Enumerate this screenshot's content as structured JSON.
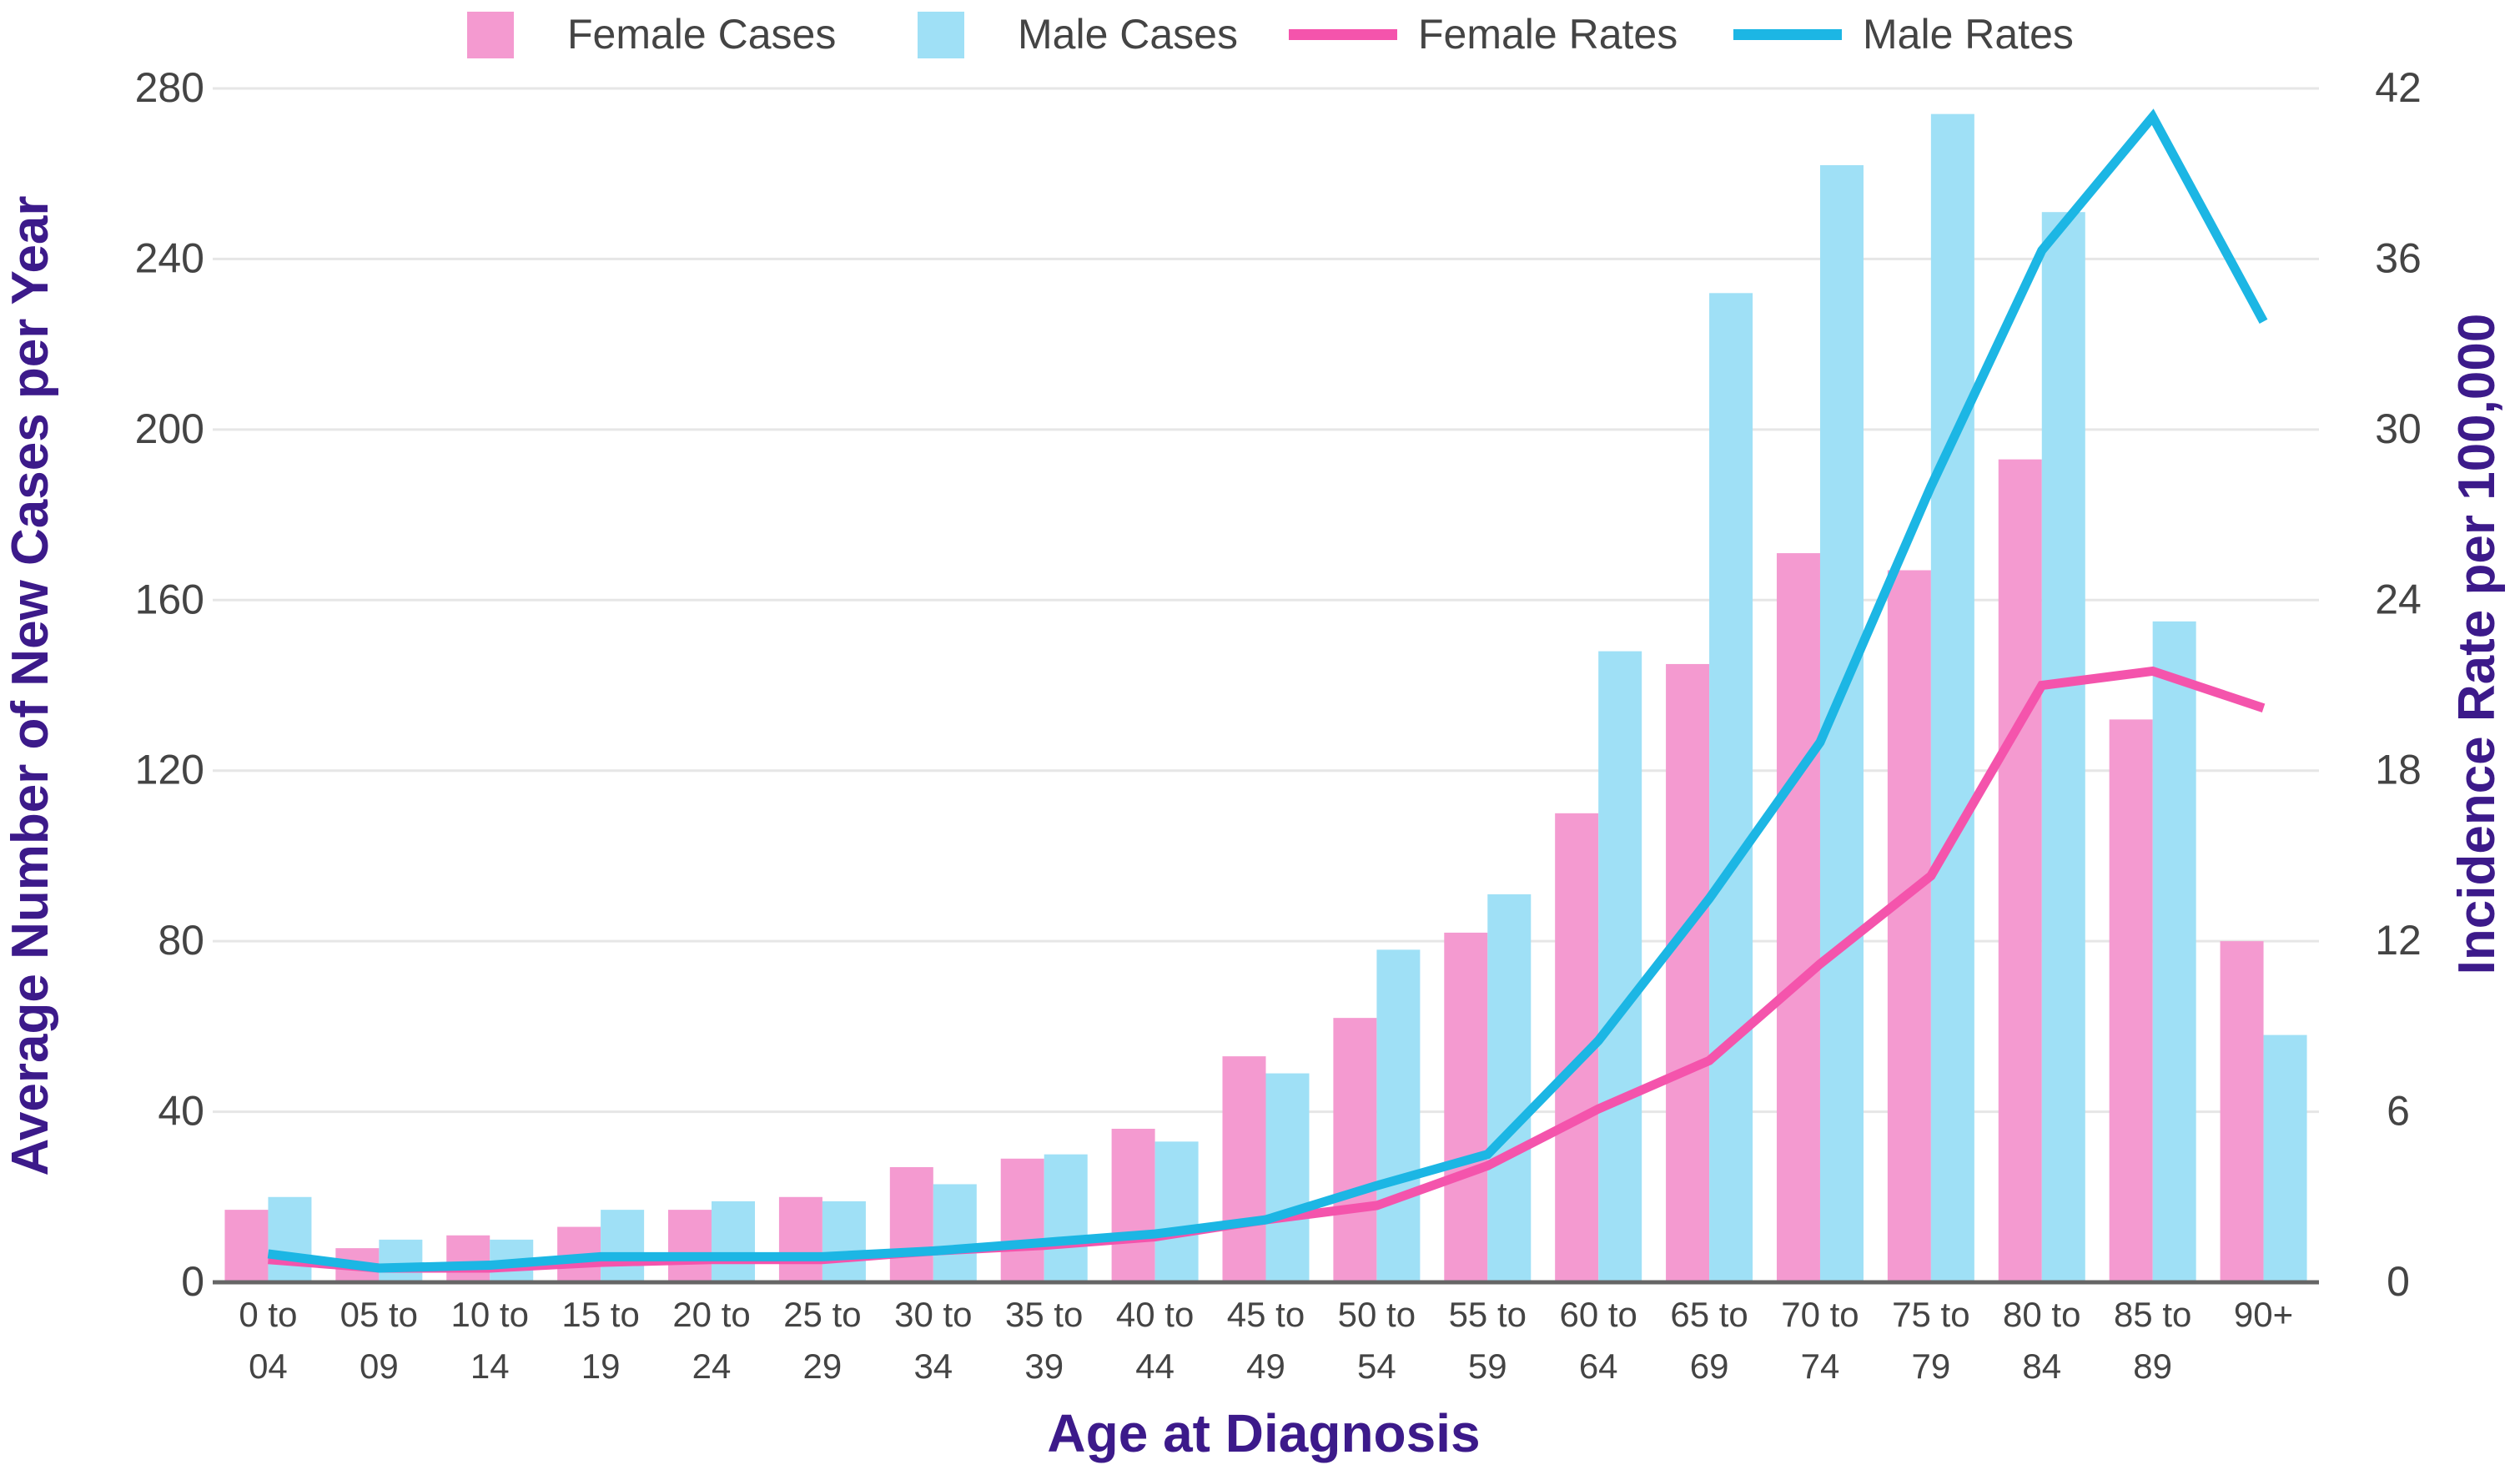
{
  "chart_data": {
    "type": "bar",
    "categories": [
      [
        "0 to",
        "04"
      ],
      [
        "05 to",
        "09"
      ],
      [
        "10 to",
        "14"
      ],
      [
        "15 to",
        "19"
      ],
      [
        "20 to",
        "24"
      ],
      [
        "25 to",
        "29"
      ],
      [
        "30 to",
        "34"
      ],
      [
        "35 to",
        "39"
      ],
      [
        "40 to",
        "44"
      ],
      [
        "45 to",
        "49"
      ],
      [
        "50 to",
        "54"
      ],
      [
        "55 to",
        "59"
      ],
      [
        "60 to",
        "64"
      ],
      [
        "65 to",
        "69"
      ],
      [
        "70 to",
        "74"
      ],
      [
        "75 to",
        "79"
      ],
      [
        "80 to",
        "84"
      ],
      [
        "85 to",
        "89"
      ],
      [
        "90+",
        ""
      ]
    ],
    "xlabel": "Age at Diagnosis",
    "ylabel": "Average Number of New Cases per Year",
    "y2label": "Incidence Rate per 100,000",
    "ylim": [
      0,
      280
    ],
    "y2lim": [
      0,
      42
    ],
    "yticks": [
      0,
      40,
      80,
      120,
      160,
      200,
      240,
      280
    ],
    "y2ticks": [
      0,
      6,
      12,
      18,
      24,
      30,
      36,
      42
    ],
    "grid": true,
    "legend_position": "top-center",
    "bar_series": [
      {
        "name": "Female Cases",
        "color": "#f49ad0",
        "values": [
          17,
          8,
          11,
          13,
          17,
          20,
          27,
          29,
          36,
          53,
          62,
          82,
          110,
          145,
          171,
          167,
          193,
          132,
          80
        ]
      },
      {
        "name": "Male Cases",
        "color": "#9fe0f6",
        "values": [
          20,
          10,
          10,
          17,
          19,
          19,
          23,
          30,
          33,
          49,
          78,
          91,
          148,
          232,
          262,
          274,
          251,
          155,
          58
        ]
      }
    ],
    "line_series": [
      {
        "name": "Female Rates",
        "color": "#f454ac",
        "axis": "right",
        "values": [
          0.8,
          0.5,
          0.5,
          0.7,
          0.8,
          0.8,
          1.1,
          1.3,
          1.6,
          2.2,
          2.7,
          4.1,
          6.1,
          7.8,
          11.2,
          14.3,
          21.0,
          21.5,
          20.2
        ]
      },
      {
        "name": "Male Rates",
        "color": "#1cb6e4",
        "axis": "right",
        "values": [
          1.0,
          0.5,
          0.6,
          0.9,
          0.9,
          0.9,
          1.1,
          1.4,
          1.7,
          2.2,
          3.4,
          4.5,
          8.5,
          13.5,
          19.0,
          28.0,
          36.3,
          41.0,
          33.8
        ]
      }
    ],
    "colors": {
      "axis_title": "#3c1a8a",
      "tick_label": "#444444",
      "gridline": "#e6e6e6",
      "axis_line": "#666666"
    }
  }
}
